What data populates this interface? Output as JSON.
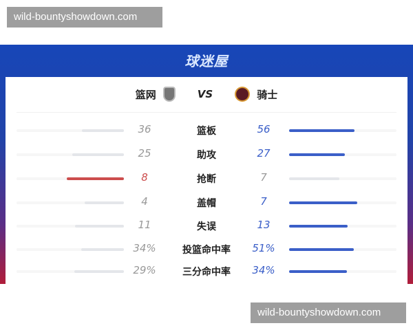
{
  "watermark": "wild-bountyshowdown.com",
  "logo": "球迷屋",
  "match": {
    "home": "篮网",
    "away": "骑士",
    "vs": "VS",
    "home_logo": "nets-logo",
    "away_logo": "cavaliers-logo"
  },
  "colors": {
    "home_win": "#cc4d4d",
    "away_win": "#3b5fc8",
    "neutral": "#e4e6ea"
  },
  "stats": [
    {
      "label": "篮板",
      "home": "36",
      "away": "56"
    },
    {
      "label": "助攻",
      "home": "25",
      "away": "27"
    },
    {
      "label": "抢断",
      "home": "8",
      "away": "7"
    },
    {
      "label": "盖帽",
      "home": "4",
      "away": "7"
    },
    {
      "label": "失误",
      "home": "11",
      "away": "13"
    },
    {
      "label": "投篮命中率",
      "home": "34%",
      "away": "51%"
    },
    {
      "label": "三分命中率",
      "home": "29%",
      "away": "34%"
    }
  ]
}
